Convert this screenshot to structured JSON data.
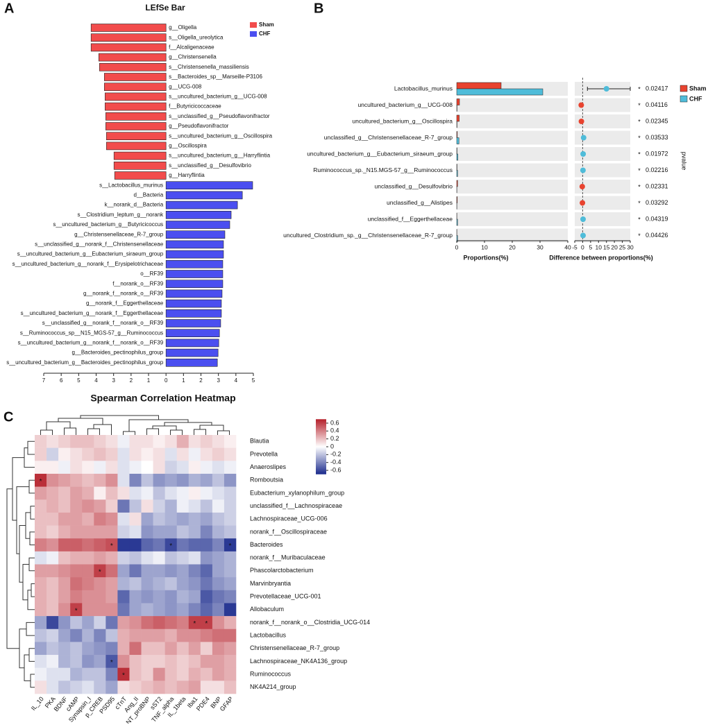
{
  "chart_data": [
    {
      "type": "bar",
      "panel_label": "A",
      "title": "LEfSe Bar",
      "categories": [
        "g__Oligella",
        "s__Oligella_ureolytica",
        "f__Alcaligenaceae",
        "g__Christensenella",
        "s__Christensenella_massiliensis",
        "s__Bacteroides_sp__Marseille-P3106",
        "g__UCG-008",
        "s__uncultured_bacterium_g__UCG-008",
        "f__Butyricicoccaceae",
        "s__unclassified_g__Pseudoflavonifractor",
        "g__Pseudoflavonifractor",
        "s__uncultured_bacterium_g__Oscillospira",
        "g__Oscillospira",
        "s__uncultured_bacterium_g__Harryflintia",
        "s__unclassified_g__Desulfovibrio",
        "g__Harryflintia",
        "s__Lactobacillus_murinus",
        "d__Bacteria",
        "k__norank_d__Bacteria",
        "s__Clostridium_leptum_g__norank",
        "s__uncultured_bacterium_g__Butyricicoccus",
        "g__Christensenellaceae_R-7_group",
        "s__unclassified_g__norank_f__Christensenellaceae",
        "s__uncultured_bacterium_g__Eubacterium_siraeum_group",
        "s__uncultured_bacterium_g__norank_f__Erysipelotrichaceae",
        "o__RF39",
        "f__norank_o__RF39",
        "g__norank_f__norank_o__RF39",
        "g__norank_f__Eggerthellaceae",
        "s__uncultured_bacterium_g__norank_f__Eggerthellaceae",
        "s__unclassified_g__norank_f__norank_o__RF39",
        "s__Ruminococcus_sp__N15_MGS-57_g__Ruminococcus",
        "s__uncultured_bacterium_g__norank_f__norank_o__RF39",
        "g__Bacteroides_pectinophilus_group",
        "s__uncultured_bacterium_g__Bacteroides_pectinophilus_group"
      ],
      "series": [
        {
          "name": "Sham",
          "color": "#f24c4c",
          "values": [
            -4.29,
            -4.29,
            -4.29,
            -3.85,
            -3.81,
            -3.53,
            -3.53,
            -3.49,
            -3.49,
            -3.45,
            -3.45,
            -3.41,
            -3.41,
            -2.98,
            -2.98,
            -2.94,
            null,
            null,
            null,
            null,
            null,
            null,
            null,
            null,
            null,
            null,
            null,
            null,
            null,
            null,
            null,
            null,
            null,
            null,
            null
          ]
        },
        {
          "name": "CHF",
          "color": "#4b4ff0",
          "values": [
            null,
            null,
            null,
            null,
            null,
            null,
            null,
            null,
            null,
            null,
            null,
            null,
            null,
            null,
            null,
            null,
            4.96,
            4.37,
            4.09,
            3.73,
            3.65,
            3.37,
            3.29,
            3.29,
            3.25,
            3.25,
            3.25,
            3.21,
            3.17,
            3.17,
            3.13,
            3.06,
            3.02,
            2.98,
            2.94
          ]
        }
      ],
      "xlim": [
        -7,
        5
      ],
      "xticks": [
        {
          "value": -7,
          "label": "7"
        },
        {
          "value": -6,
          "label": "6"
        },
        {
          "value": -5,
          "label": "5"
        },
        {
          "value": -4,
          "label": "4"
        },
        {
          "value": -3,
          "label": "3"
        },
        {
          "value": -2,
          "label": "2"
        },
        {
          "value": -1,
          "label": "1"
        },
        0,
        1,
        2,
        3,
        4,
        5
      ]
    },
    {
      "type": "errorbar",
      "panel_label": "B",
      "categories": [
        "Lactobacillus_murinus",
        "uncultured_bacterium_g__UCG-008",
        "uncultured_bacterium_g__Oscillospira",
        "unclassified_g__Christensenellaceae_R-7_group",
        "uncultured_bacterium_g__Eubacterium_siraeum_group",
        "Ruminococcus_sp._N15.MGS-57_g__Ruminococcus",
        "unclassified_g__Desulfovibrio",
        "unclassified_g__Alistipes",
        "unclassified_f__Eggerthellaceae",
        "uncultured_Clostridium_sp._g__Christensenellaceae_R-7_group"
      ],
      "series": [
        {
          "name": "Sham",
          "color": "#e8432f",
          "values": [
            16,
            1.0,
            0.9,
            0.2,
            0.1,
            0.1,
            0.3,
            0.2,
            0.05,
            0.05
          ]
        },
        {
          "name": "CHF",
          "color": "#4fbcd9",
          "values": [
            31,
            0.1,
            0.1,
            0.8,
            0.4,
            0.3,
            0.05,
            0.05,
            0.3,
            0.3
          ]
        }
      ],
      "xlim": [
        0,
        40
      ],
      "xticks": [
        0,
        10,
        20,
        30,
        40
      ],
      "xlabel": "Proportions(%)",
      "difference": {
        "values": [
          15,
          -0.9,
          -0.8,
          0.6,
          0.3,
          0.2,
          -0.25,
          -0.15,
          0.25,
          0.25
        ],
        "ci_low": [
          3,
          null,
          null,
          null,
          null,
          null,
          null,
          null,
          null,
          null
        ],
        "ci_high": [
          30,
          null,
          null,
          null,
          null,
          null,
          null,
          null,
          null,
          null
        ],
        "xlim": [
          -5,
          30
        ],
        "xticks": [
          -5,
          0,
          5,
          10,
          15,
          20,
          25,
          30
        ],
        "xlabel": "Difference between proportions(%)"
      },
      "pvalues": [
        0.02417,
        0.04116,
        0.02345,
        0.03533,
        0.01972,
        0.02216,
        0.02331,
        0.03292,
        0.04319,
        0.04426
      ],
      "significance": [
        "*",
        "*",
        "*",
        "*",
        "*",
        "*",
        "*",
        "*",
        "*",
        "*"
      ],
      "pvalue_label": "pvalue"
    },
    {
      "type": "heatmap",
      "panel_label": "C",
      "title": "Spearman Correlation Heatmap",
      "rows": [
        "Blautia",
        "Prevotella",
        "Anaeroslipes",
        "Romboutsia",
        "Eubacterium_xylanophilum_group",
        "unclassified_f__Lachnospiraceae",
        "Lachnospiraceae_UCG-006",
        "norank_f__Oscillospiraceae",
        "Bacteroides",
        "norank_f__Muribaculaceae",
        "Phascolarctobacterium",
        "Marvinbryantia",
        "Prevotellaceae_UCG-001",
        "Allobaculum",
        "norank_f__norank_o__Clostridia_UCG-014",
        "Lactobacillus",
        "Christensenellaceae_R-7_group",
        "Lachnospiraceae_NK4A136_group",
        "Ruminococcus",
        "NK4A214_group"
      ],
      "columns": [
        "IL_10",
        "PKA",
        "BDNF",
        "cAMP",
        "Synapsin_I",
        "p_CREB",
        "PSD95",
        "cTnT",
        "Ang_II",
        "NT_proBNP",
        "sST2",
        "TNF_alpha",
        "IL_1beta",
        "Iba1",
        "PDE4",
        "BNP",
        "GFAP"
      ],
      "values": [
        [
          0.15,
          0.1,
          0.15,
          0.2,
          0.2,
          0.15,
          0.1,
          -0.05,
          0.1,
          0.1,
          0.05,
          0.1,
          0.25,
          0.1,
          0.15,
          0.1,
          0.05
        ],
        [
          0.15,
          -0.15,
          0.05,
          0.1,
          0.15,
          0.2,
          0.15,
          -0.1,
          0.1,
          0.05,
          0.1,
          -0.1,
          0.1,
          -0.05,
          0.1,
          0.15,
          0.1
        ],
        [
          0.05,
          0.05,
          -0.05,
          0.1,
          0.05,
          -0.05,
          0.1,
          -0.1,
          -0.05,
          0,
          0.1,
          -0.15,
          -0.1,
          0.05,
          -0.05,
          -0.1,
          -0.05
        ],
        [
          0.65,
          0.35,
          0.3,
          0.25,
          0.2,
          0.25,
          0.35,
          -0.1,
          -0.4,
          -0.2,
          -0.35,
          -0.3,
          -0.35,
          -0.25,
          -0.3,
          -0.2,
          -0.35
        ],
        [
          0.3,
          0.25,
          0.2,
          0.3,
          0.25,
          0.05,
          0.2,
          0.1,
          -0.1,
          -0.05,
          -0.2,
          -0.1,
          -0.05,
          0.05,
          -0.05,
          -0.1,
          -0.15
        ],
        [
          0.2,
          0.25,
          0.2,
          0.3,
          0.35,
          0.3,
          0.15,
          -0.45,
          -0.2,
          0.1,
          -0.15,
          -0.25,
          -0.05,
          -0.1,
          -0.2,
          -0.05,
          -0.15
        ],
        [
          0.2,
          0.2,
          0.3,
          0.3,
          0.25,
          0.4,
          0.35,
          -0.1,
          0.1,
          -0.3,
          -0.2,
          -0.25,
          -0.3,
          -0.25,
          -0.3,
          -0.2,
          -0.15
        ],
        [
          0.2,
          0.15,
          0.25,
          0.3,
          0.3,
          0.3,
          0.3,
          -0.15,
          -0.1,
          -0.35,
          -0.3,
          -0.3,
          -0.2,
          -0.25,
          -0.4,
          -0.25,
          -0.2
        ],
        [
          0.4,
          0.35,
          0.5,
          0.5,
          0.45,
          0.5,
          0.55,
          -0.65,
          -0.65,
          -0.5,
          -0.45,
          -0.6,
          -0.45,
          -0.5,
          -0.5,
          -0.4,
          -0.65
        ],
        [
          -0.1,
          -0.05,
          0.2,
          0.25,
          0.25,
          0.3,
          0.25,
          -0.15,
          -0.2,
          -0.1,
          -0.05,
          -0.2,
          -0.15,
          -0.1,
          -0.35,
          -0.3,
          -0.25
        ],
        [
          0.3,
          0.3,
          0.35,
          0.4,
          0.4,
          0.6,
          0.45,
          -0.3,
          -0.45,
          -0.3,
          -0.3,
          -0.35,
          -0.3,
          -0.4,
          -0.5,
          -0.3,
          -0.25
        ],
        [
          0.25,
          0.2,
          0.3,
          0.45,
          0.4,
          0.35,
          0.3,
          -0.25,
          -0.2,
          -0.3,
          -0.25,
          -0.2,
          -0.3,
          -0.35,
          -0.45,
          -0.35,
          -0.3
        ],
        [
          0.25,
          0.2,
          0.3,
          0.4,
          0.35,
          0.35,
          0.3,
          -0.5,
          -0.3,
          -0.35,
          -0.3,
          -0.35,
          -0.25,
          -0.3,
          -0.55,
          -0.45,
          -0.4
        ],
        [
          0.25,
          0.2,
          0.35,
          0.6,
          0.35,
          0.35,
          0.35,
          -0.45,
          -0.3,
          -0.25,
          -0.3,
          -0.35,
          -0.3,
          -0.4,
          -0.5,
          -0.4,
          -0.65
        ],
        [
          -0.3,
          -0.6,
          -0.35,
          -0.2,
          -0.3,
          -0.15,
          -0.45,
          0.3,
          0.35,
          0.45,
          0.5,
          0.45,
          0.4,
          0.6,
          0.6,
          0.35,
          0.25
        ],
        [
          -0.2,
          -0.15,
          -0.3,
          -0.4,
          -0.25,
          -0.4,
          -0.2,
          0.25,
          0.3,
          0.3,
          0.3,
          0.25,
          0.35,
          0.35,
          0.4,
          0.45,
          0.45
        ],
        [
          -0.3,
          -0.2,
          -0.25,
          -0.2,
          -0.3,
          -0.35,
          -0.4,
          0.25,
          0.45,
          0.2,
          0.2,
          0.3,
          0.2,
          0.3,
          0.15,
          0.35,
          0.3
        ],
        [
          -0.1,
          -0.05,
          -0.25,
          -0.2,
          -0.35,
          -0.3,
          -0.55,
          0.35,
          0.2,
          0.15,
          0.15,
          0.2,
          0.15,
          0.2,
          0.3,
          0.3,
          0.25
        ],
        [
          -0.05,
          -0.1,
          -0.1,
          -0.25,
          -0.2,
          -0.2,
          -0.4,
          0.65,
          0.2,
          0.15,
          0.35,
          0.2,
          0.15,
          0.25,
          0.2,
          0.3,
          0.25
        ],
        [
          0.1,
          -0.1,
          -0.2,
          -0.15,
          -0.1,
          -0.2,
          -0.3,
          0.1,
          0.15,
          0.2,
          0.25,
          0.2,
          0.25,
          0.3,
          0.1,
          0.1,
          0.2
        ]
      ],
      "significance": [
        [
          null,
          null,
          null,
          null,
          null,
          null,
          null,
          null,
          null,
          null,
          null,
          null,
          null,
          null,
          null,
          null,
          null
        ],
        [
          null,
          null,
          null,
          null,
          null,
          null,
          null,
          null,
          null,
          null,
          null,
          null,
          null,
          null,
          null,
          null,
          null
        ],
        [
          null,
          null,
          null,
          null,
          null,
          null,
          null,
          null,
          null,
          null,
          null,
          null,
          null,
          null,
          null,
          null,
          null
        ],
        [
          "*",
          null,
          null,
          null,
          null,
          null,
          null,
          null,
          null,
          null,
          null,
          null,
          null,
          null,
          null,
          null,
          null
        ],
        [
          null,
          null,
          null,
          null,
          null,
          null,
          null,
          null,
          null,
          null,
          null,
          null,
          null,
          null,
          null,
          null,
          null
        ],
        [
          null,
          null,
          null,
          null,
          null,
          null,
          null,
          null,
          null,
          null,
          null,
          null,
          null,
          null,
          null,
          null,
          null
        ],
        [
          null,
          null,
          null,
          null,
          null,
          null,
          null,
          null,
          null,
          null,
          null,
          null,
          null,
          null,
          null,
          null,
          null
        ],
        [
          null,
          null,
          null,
          null,
          null,
          null,
          null,
          null,
          null,
          null,
          null,
          null,
          null,
          null,
          null,
          null,
          null
        ],
        [
          null,
          null,
          null,
          null,
          null,
          null,
          "*",
          null,
          null,
          null,
          null,
          "*",
          null,
          null,
          null,
          null,
          "*"
        ],
        [
          null,
          null,
          null,
          null,
          null,
          null,
          null,
          null,
          null,
          null,
          null,
          null,
          null,
          null,
          null,
          null,
          null
        ],
        [
          null,
          null,
          null,
          null,
          null,
          "*",
          null,
          null,
          null,
          null,
          null,
          null,
          null,
          null,
          null,
          null,
          null
        ],
        [
          null,
          null,
          null,
          null,
          null,
          null,
          null,
          null,
          null,
          null,
          null,
          null,
          null,
          null,
          null,
          null,
          null
        ],
        [
          null,
          null,
          null,
          null,
          null,
          null,
          null,
          null,
          null,
          null,
          null,
          null,
          null,
          null,
          null,
          null,
          null
        ],
        [
          null,
          null,
          null,
          "*",
          null,
          null,
          null,
          null,
          null,
          null,
          null,
          null,
          null,
          null,
          null,
          null,
          null
        ],
        [
          null,
          null,
          null,
          null,
          null,
          null,
          null,
          null,
          null,
          null,
          null,
          null,
          null,
          "*",
          "*",
          null,
          null
        ],
        [
          null,
          null,
          null,
          null,
          null,
          null,
          null,
          null,
          null,
          null,
          null,
          null,
          null,
          null,
          null,
          null,
          null
        ],
        [
          null,
          null,
          null,
          null,
          null,
          null,
          null,
          null,
          null,
          null,
          null,
          null,
          null,
          null,
          null,
          null,
          null
        ],
        [
          null,
          null,
          null,
          null,
          null,
          null,
          "*",
          null,
          null,
          null,
          null,
          null,
          null,
          null,
          null,
          null,
          null
        ],
        [
          null,
          null,
          null,
          null,
          null,
          null,
          null,
          "*",
          null,
          null,
          null,
          null,
          null,
          null,
          null,
          null,
          null
        ],
        [
          null,
          null,
          null,
          null,
          null,
          null,
          null,
          null,
          null,
          null,
          null,
          null,
          null,
          null,
          null,
          null,
          null
        ]
      ],
      "zlim": [
        -0.7,
        0.7
      ],
      "zticks": [
        0.6,
        0.4,
        0.2,
        0,
        -0.2,
        -0.4,
        -0.6
      ],
      "colors": {
        "low": "#1a2a8c",
        "mid": "#ffffff",
        "high": "#b51f2a"
      }
    }
  ]
}
